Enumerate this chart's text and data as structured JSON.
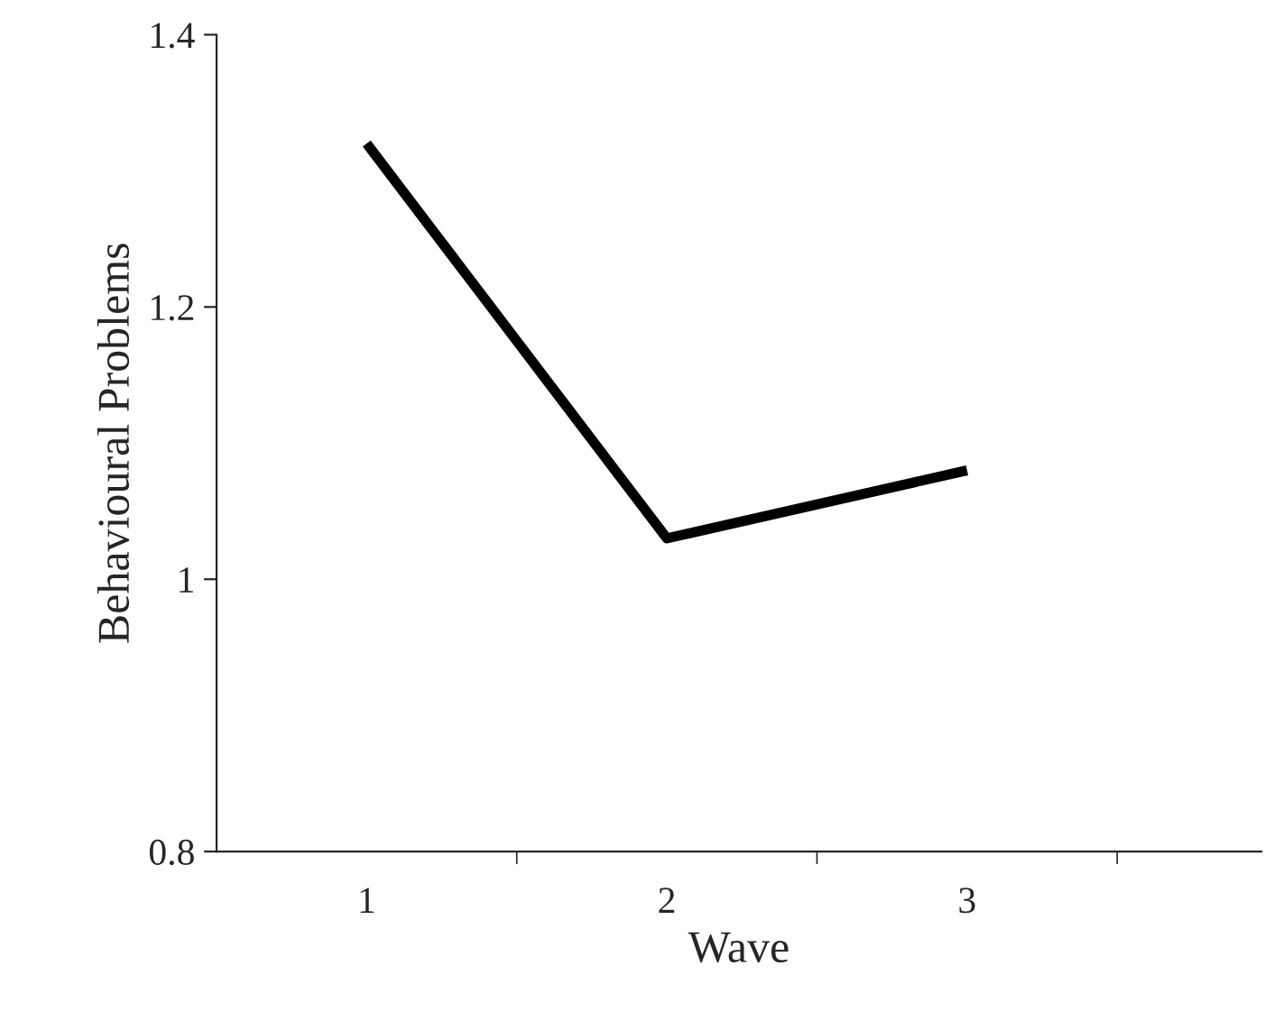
{
  "chart_data": {
    "type": "line",
    "xlabel": "Wave",
    "ylabel": "Behavioural Problems",
    "categories": [
      "1",
      "2",
      "3"
    ],
    "series": [
      {
        "color": "#000000",
        "values": [
          1.32,
          1.03,
          1.08
        ]
      }
    ],
    "ylim": [
      0.8,
      1.4
    ],
    "yticks": [
      0.8,
      1,
      1.2,
      1.4
    ],
    "grid": false,
    "marker": "none",
    "line_style": "solid"
  }
}
